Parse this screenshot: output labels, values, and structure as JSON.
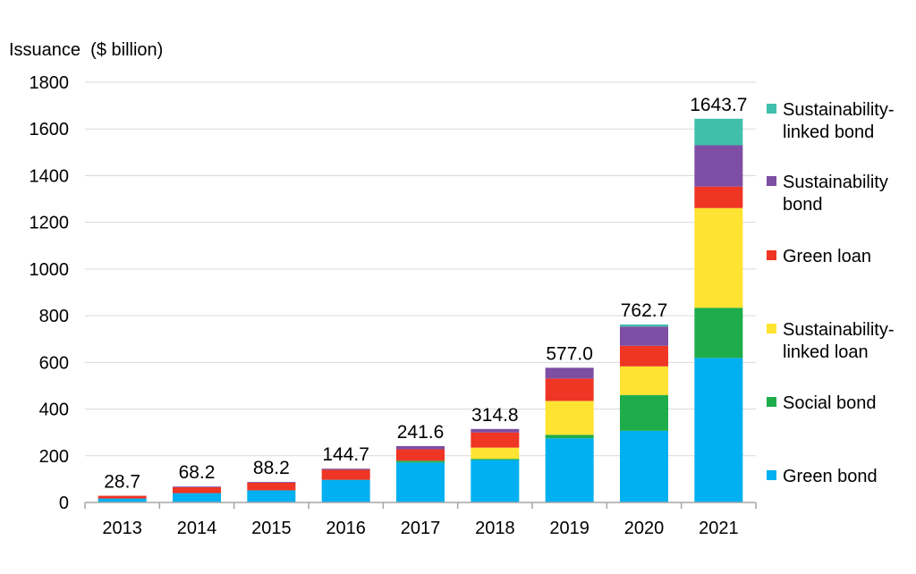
{
  "chart_data": {
    "type": "bar",
    "stacked": true,
    "title": "",
    "xlabel": "",
    "ylabel": "Issuance  ($ billion)",
    "ylim": [
      0,
      1800
    ],
    "yticks": [
      0,
      200,
      400,
      600,
      800,
      1000,
      1200,
      1400,
      1600,
      1800
    ],
    "grid": true,
    "legend_position": "right",
    "categories": [
      "2013",
      "2014",
      "2015",
      "2016",
      "2017",
      "2018",
      "2019",
      "2020",
      "2021"
    ],
    "totals": [
      28.7,
      68.2,
      88.2,
      144.7,
      241.6,
      314.8,
      577.0,
      762.7,
      1643.7
    ],
    "total_labels": [
      "28.7",
      "68.2",
      "88.2",
      "144.7",
      "241.6",
      "314.8",
      "577.0",
      "762.7",
      "1643.7"
    ],
    "series": [
      {
        "name": "Green bond",
        "color": "#00b0f0",
        "values": [
          17,
          40,
          52,
          97,
          171,
          182,
          275,
          307,
          619
        ]
      },
      {
        "name": "Social bond",
        "color": "#1fad4b",
        "values": [
          0,
          0,
          0,
          0,
          8,
          5,
          15,
          153,
          215
        ]
      },
      {
        "name": "Sustainability-\nlinked loan",
        "color": "#ffe332",
        "values": [
          0,
          0,
          0,
          0,
          0,
          48,
          145,
          123,
          427
        ]
      },
      {
        "name": "Green loan",
        "color": "#ef3524",
        "values": [
          11.7,
          25,
          33,
          43,
          49,
          65,
          96,
          88,
          92
        ]
      },
      {
        "name": "Sustainability\nbond",
        "color": "#7d4ea3",
        "values": [
          0,
          3.2,
          3.2,
          4.7,
          13.6,
          14.8,
          46,
          82.7,
          177
        ]
      },
      {
        "name": "Sustainability-\nlinked bond",
        "color": "#40bfad",
        "values": [
          0,
          0,
          0,
          0,
          0,
          0,
          0,
          9,
          113.7
        ]
      }
    ]
  }
}
